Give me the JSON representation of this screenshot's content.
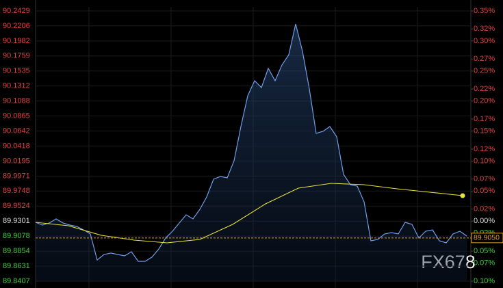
{
  "chart_data": {
    "type": "line",
    "yticks": [
      90.2429,
      90.2206,
      90.1982,
      90.1759,
      90.1535,
      90.1312,
      90.1088,
      90.0865,
      90.0642,
      90.0418,
      90.0195,
      89.9971,
      89.9748,
      89.9524,
      89.9301,
      89.9078,
      89.8854,
      89.8631,
      89.8407
    ],
    "ylim": [
      89.8407,
      90.2429
    ],
    "y2lim": [
      -0.1,
      0.35
    ],
    "y2ticks": [
      {
        "value": 0.35,
        "label": "0.35%"
      },
      {
        "value": 0.32,
        "label": "0.32%"
      },
      {
        "value": 0.3,
        "label": "0.30%"
      },
      {
        "value": 0.27,
        "label": "0.27%"
      },
      {
        "value": 0.25,
        "label": "0.25%"
      },
      {
        "value": 0.22,
        "label": "0.22%"
      },
      {
        "value": 0.2,
        "label": "0.20%"
      },
      {
        "value": 0.17,
        "label": "0.17%"
      },
      {
        "value": 0.15,
        "label": "0.15%"
      },
      {
        "value": 0.12,
        "label": "0.12%"
      },
      {
        "value": 0.1,
        "label": "0.10%"
      },
      {
        "value": 0.07,
        "label": "0.07%"
      },
      {
        "value": 0.05,
        "label": "0.05%"
      },
      {
        "value": 0.02,
        "label": "0.02%"
      },
      {
        "value": 0,
        "label": "0.00%"
      },
      {
        "value": -0.02,
        "label": "0.02%"
      },
      {
        "value": -0.05,
        "label": "0.05%"
      },
      {
        "value": -0.07,
        "label": "0.07%"
      },
      {
        "value": -0.1,
        "label": "0.10%"
      }
    ],
    "grid": true,
    "series": [
      {
        "color": "#6f9fe8",
        "values": [
          89.9283,
          89.9242,
          89.9273,
          89.9334,
          89.9273,
          89.9242,
          89.9222,
          89.9171,
          89.911,
          89.8723,
          89.8804,
          89.8825,
          89.8804,
          89.8784,
          89.8845,
          89.8702,
          89.8702,
          89.8764,
          89.8886,
          89.9049,
          89.915,
          89.9273,
          89.9395,
          89.9334,
          89.9476,
          89.966,
          89.9924,
          89.9965,
          89.9945,
          90.0199,
          90.0708,
          90.1166,
          90.139,
          90.1289,
          90.1574,
          90.139,
          90.1625,
          90.1777,
          90.2236,
          90.1828,
          90.1268,
          90.0606,
          90.0637,
          90.0708,
          90.0556,
          89.9996,
          89.9843,
          89.9822,
          89.9588,
          89.9008,
          89.9028,
          89.911,
          89.913,
          89.911,
          89.9283,
          89.9252,
          89.9049,
          89.915,
          89.9171,
          89.9008,
          89.8977,
          89.911,
          89.915,
          89.9079
        ]
      },
      {
        "color": "#e8e23a",
        "values": [
          89.9283,
          89.9232,
          89.9089,
          89.9018,
          89.8977,
          89.9028,
          89.9252,
          89.9558,
          89.9792,
          89.9863,
          89.9843,
          89.9782,
          89.9731,
          89.968
        ]
      }
    ],
    "last_price": {
      "value": 89.905,
      "label": "89.9050"
    },
    "watermark": "FX678"
  }
}
